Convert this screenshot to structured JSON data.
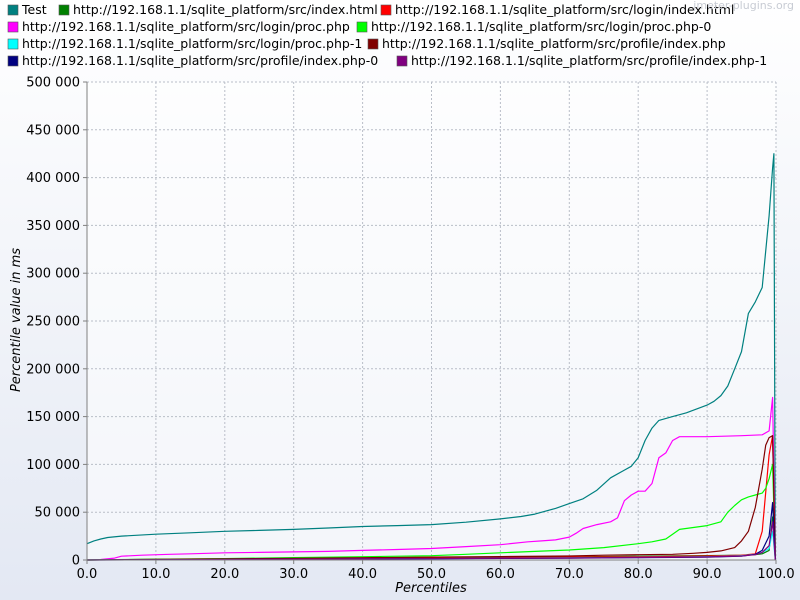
{
  "chart_data": {
    "type": "line",
    "title": "",
    "xlabel": "Percentiles",
    "ylabel": "Percentile value in ms",
    "xlim": [
      0,
      100
    ],
    "ylim": [
      0,
      500000
    ],
    "x_ticks": [
      0,
      10,
      20,
      30,
      40,
      50,
      60,
      70,
      80,
      90,
      100
    ],
    "x_tick_labels": [
      "0.0",
      "10.0",
      "20.0",
      "30.0",
      "40.0",
      "50.0",
      "60.0",
      "70.0",
      "80.0",
      "90.0",
      "100.0"
    ],
    "y_ticks": [
      0,
      50000,
      100000,
      150000,
      200000,
      250000,
      300000,
      350000,
      400000,
      450000,
      500000
    ],
    "y_tick_labels": [
      "0",
      "50 000",
      "100 000",
      "150 000",
      "200 000",
      "250 000",
      "300 000",
      "350 000",
      "400 000",
      "450 000",
      "500 000"
    ],
    "grid": true,
    "legend_position": "top",
    "watermark": "jmeter-plugins.org",
    "series": [
      {
        "name": "Test",
        "color": "#008080",
        "x": [
          0,
          1,
          2,
          3,
          5,
          10,
          15,
          20,
          25,
          30,
          35,
          40,
          45,
          50,
          55,
          60,
          63,
          65,
          68,
          70,
          72,
          74,
          76,
          78,
          79,
          80,
          81,
          82,
          83,
          85,
          87,
          90,
          91,
          92,
          93,
          94,
          95,
          96,
          97,
          98,
          99,
          99.5,
          99.7,
          99.9
        ],
        "y": [
          17000,
          20000,
          22000,
          23500,
          25000,
          27000,
          28500,
          30000,
          31000,
          32000,
          33500,
          35000,
          36000,
          37000,
          39500,
          43000,
          45500,
          48000,
          54000,
          59000,
          64000,
          73000,
          86000,
          94000,
          98000,
          107000,
          125000,
          138000,
          146000,
          150000,
          154000,
          162000,
          166000,
          172000,
          182000,
          200000,
          218000,
          258000,
          270000,
          285000,
          360000,
          410000,
          425000,
          0
        ]
      },
      {
        "name": "http://192.168.1.1/sqlite_platform/src/index.html",
        "color": "#008000",
        "x": [
          0,
          5,
          10,
          20,
          30,
          40,
          50,
          60,
          70,
          80,
          90,
          95,
          97,
          98,
          99,
          99.5,
          99.9
        ],
        "y": [
          0,
          300,
          600,
          1000,
          1400,
          1800,
          2300,
          2800,
          3300,
          4000,
          4600,
          5000,
          5500,
          6500,
          10000,
          45000,
          0
        ]
      },
      {
        "name": "http://192.168.1.1/sqlite_platform/src/login/index.html",
        "color": "#ff0000",
        "x": [
          0,
          10,
          20,
          30,
          40,
          50,
          60,
          70,
          80,
          90,
          95,
          97,
          98,
          99,
          99.5,
          99.9
        ],
        "y": [
          0,
          400,
          800,
          1200,
          1600,
          2000,
          2500,
          3000,
          3500,
          4200,
          5000,
          6500,
          30000,
          110000,
          130000,
          0
        ]
      },
      {
        "name": "http://192.168.1.1/sqlite_platform/src/login/proc.php",
        "color": "#ff00ff",
        "x": [
          0,
          2,
          4,
          5,
          8,
          12,
          15,
          20,
          25,
          30,
          35,
          40,
          45,
          50,
          55,
          60,
          64,
          66,
          68,
          70,
          71,
          72,
          74,
          76,
          77,
          78,
          79,
          80,
          81,
          82,
          83,
          84,
          85,
          86,
          88,
          90,
          95,
          98,
          99,
          99.5,
          99.9
        ],
        "y": [
          0,
          500,
          2000,
          4000,
          5000,
          6000,
          6500,
          7500,
          8000,
          8500,
          9000,
          10000,
          11000,
          12000,
          14000,
          16000,
          19000,
          20000,
          21000,
          24000,
          28000,
          33000,
          37000,
          40000,
          44000,
          62000,
          68000,
          72000,
          72000,
          80000,
          107000,
          112000,
          125000,
          129000,
          129000,
          129000,
          130000,
          131000,
          135000,
          170000,
          0
        ]
      },
      {
        "name": "http://192.168.1.1/sqlite_platform/src/login/proc.php-0",
        "color": "#00ff00",
        "x": [
          0,
          10,
          20,
          30,
          40,
          50,
          55,
          60,
          65,
          70,
          75,
          80,
          82,
          84,
          85,
          86,
          88,
          90,
          92,
          93,
          94,
          95,
          96,
          97,
          98,
          98.5,
          99,
          99.5,
          99.9
        ],
        "y": [
          0,
          800,
          1500,
          2500,
          3500,
          4500,
          6000,
          7500,
          9000,
          10500,
          13000,
          17000,
          19000,
          22000,
          27000,
          32000,
          34000,
          36000,
          40000,
          50000,
          57000,
          63000,
          66000,
          68000,
          70000,
          75000,
          85000,
          100000,
          0
        ]
      },
      {
        "name": "http://192.168.1.1/sqlite_platform/src/login/proc.php-1",
        "color": "#00ffff",
        "x": [
          0,
          10,
          20,
          30,
          40,
          50,
          60,
          70,
          80,
          90,
          95,
          97,
          98,
          99,
          99.5,
          99.9
        ],
        "y": [
          0,
          300,
          600,
          900,
          1200,
          1500,
          1900,
          2300,
          2800,
          3500,
          4500,
          6000,
          8000,
          12000,
          30000,
          0
        ]
      },
      {
        "name": "http://192.168.1.1/sqlite_platform/src/profile/index.php",
        "color": "#800000",
        "x": [
          0,
          10,
          20,
          30,
          40,
          50,
          60,
          70,
          75,
          80,
          85,
          88,
          90,
          92,
          94,
          95,
          96,
          97,
          98,
          98.5,
          99,
          99.5,
          99.9
        ],
        "y": [
          0,
          600,
          1200,
          1800,
          2400,
          3000,
          3600,
          4200,
          5000,
          5500,
          6000,
          7000,
          8000,
          9500,
          13000,
          20000,
          30000,
          55000,
          95000,
          120000,
          128000,
          130000,
          0
        ]
      },
      {
        "name": "http://192.168.1.1/sqlite_platform/src/profile/index.php-0",
        "color": "#000080",
        "x": [
          0,
          10,
          20,
          30,
          40,
          50,
          60,
          70,
          80,
          90,
          95,
          97,
          98,
          99,
          99.5,
          99.9
        ],
        "y": [
          0,
          200,
          500,
          800,
          1100,
          1400,
          1700,
          2000,
          2500,
          3000,
          4000,
          6000,
          10000,
          25000,
          60000,
          0
        ]
      },
      {
        "name": "http://192.168.1.1/sqlite_platform/src/profile/index.php-1",
        "color": "#800080",
        "x": [
          0,
          10,
          20,
          30,
          40,
          50,
          60,
          70,
          80,
          90,
          95,
          97,
          98,
          99,
          99.5,
          99.9
        ],
        "y": [
          0,
          250,
          550,
          850,
          1150,
          1450,
          1800,
          2100,
          2600,
          3200,
          4200,
          5500,
          8000,
          15000,
          40000,
          0
        ]
      }
    ]
  }
}
